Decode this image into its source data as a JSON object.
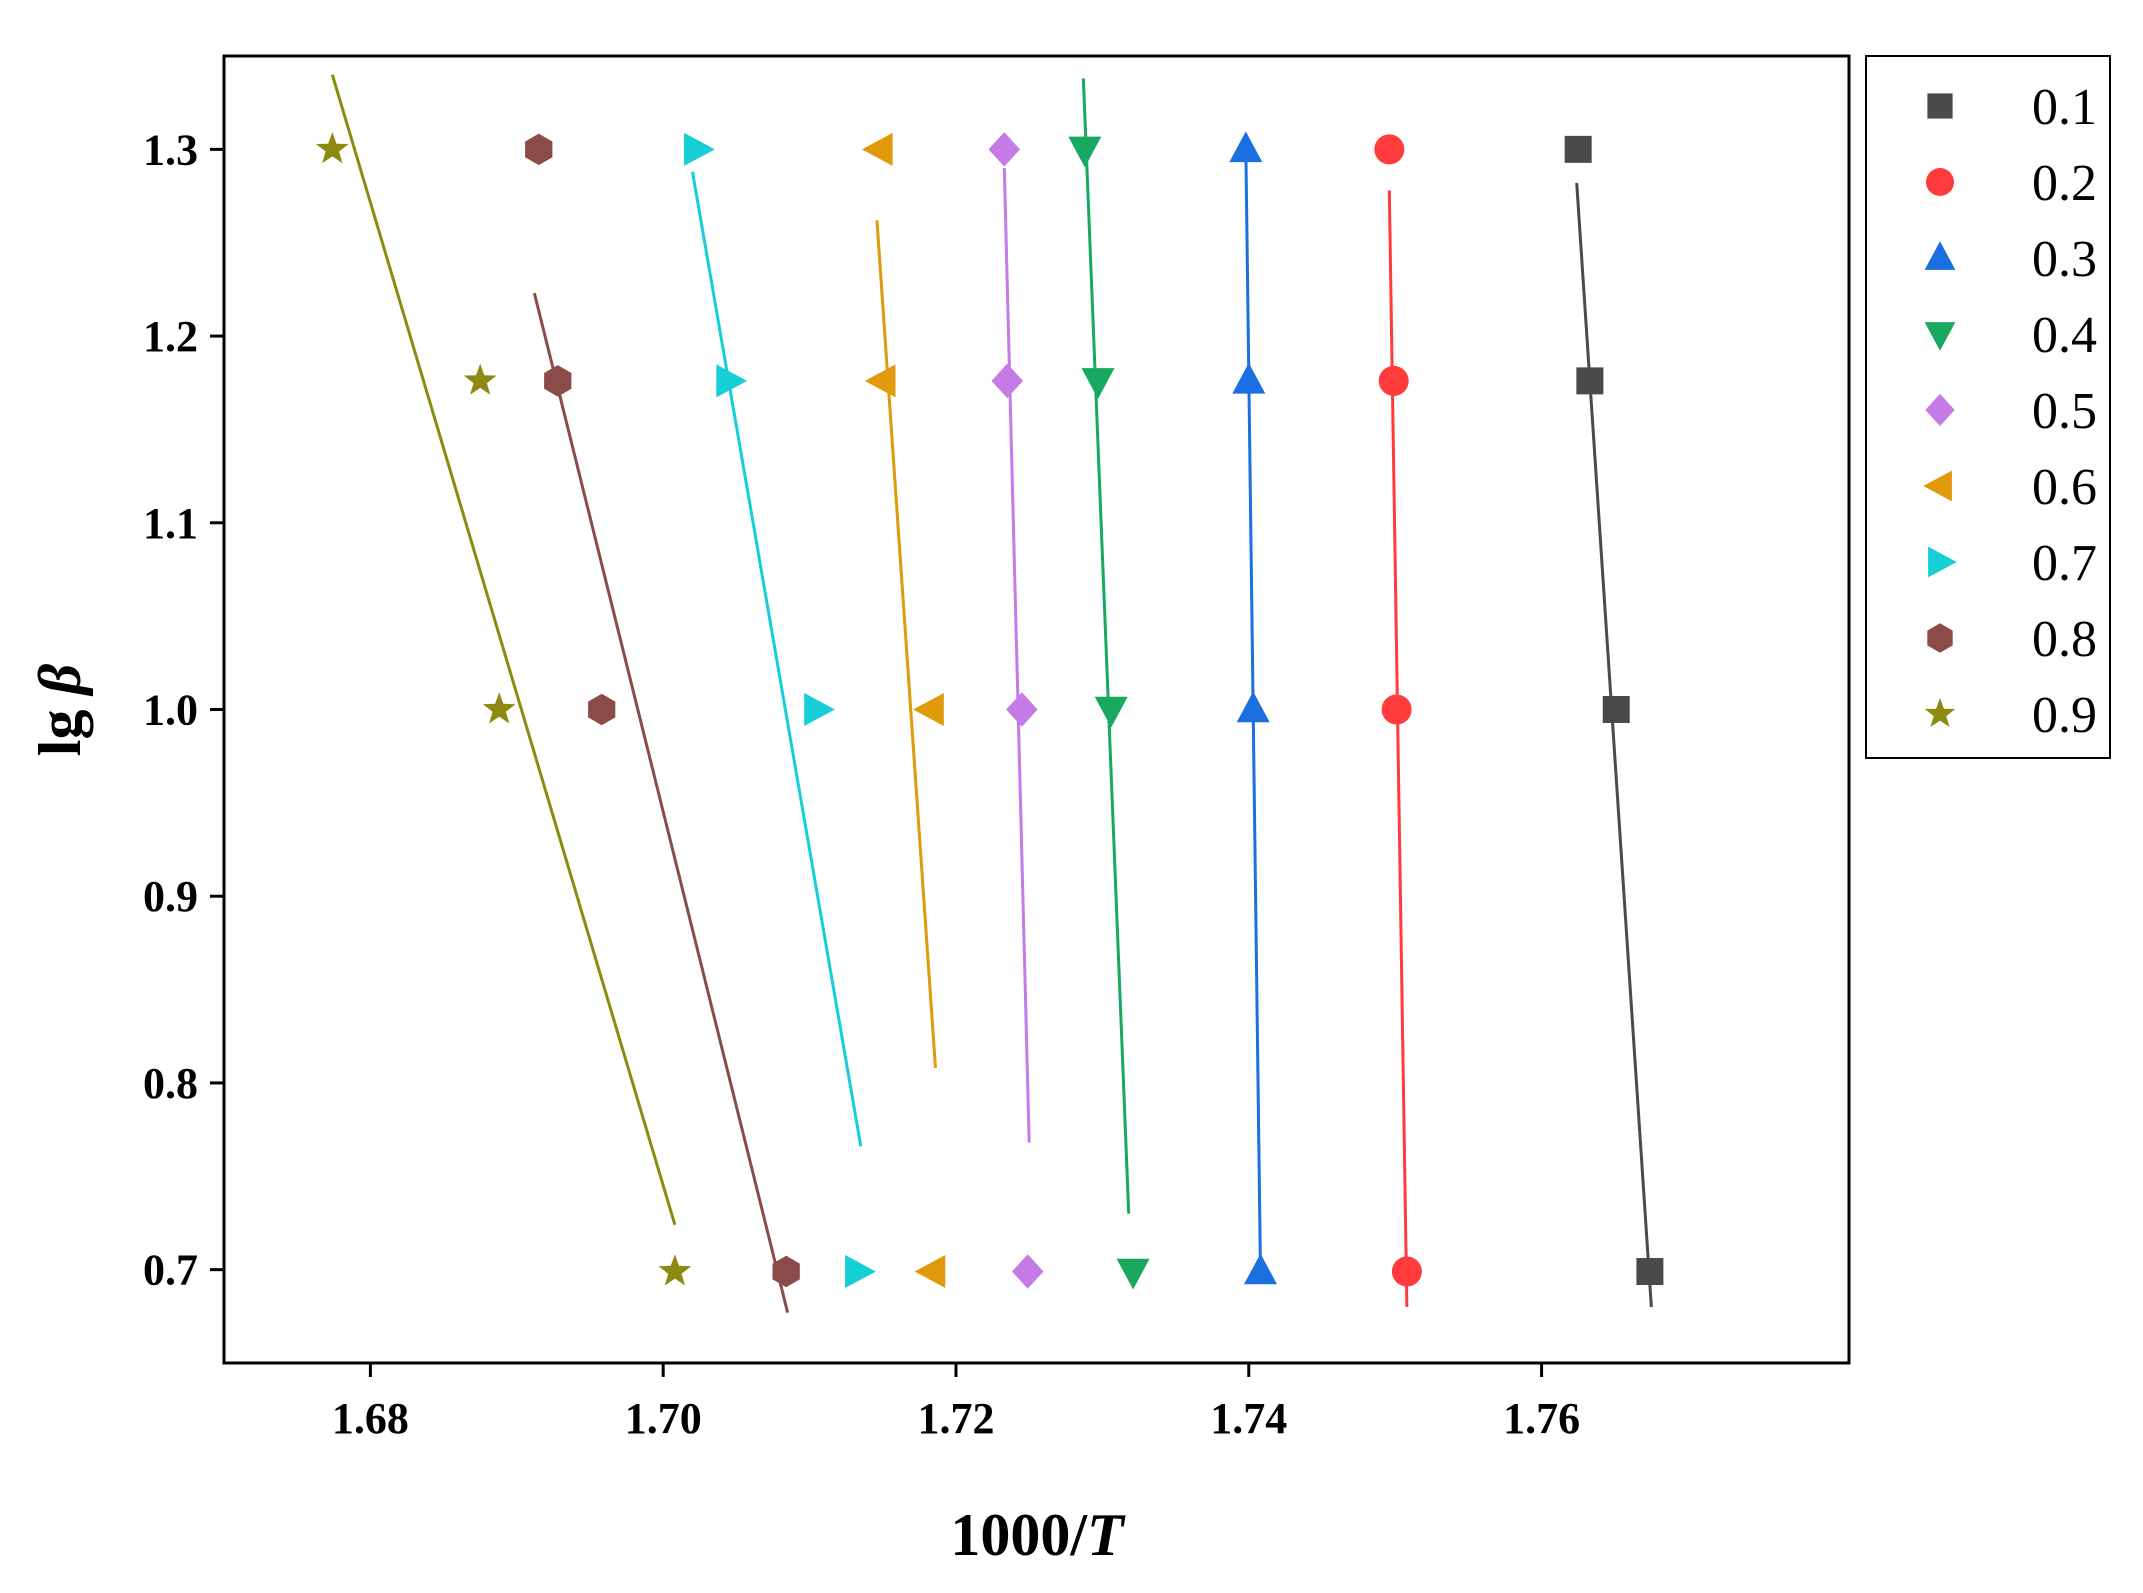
{
  "chart_data": {
    "type": "scatter",
    "title": "",
    "xlabel_main": "1000/",
    "xlabel_italic": "T",
    "ylabel_main": "lg ",
    "ylabel_italic": "β",
    "xlim": [
      1.67,
      1.781
    ],
    "ylim": [
      0.65,
      1.35
    ],
    "x_ticks": [
      1.68,
      1.7,
      1.72,
      1.74,
      1.76
    ],
    "x_tick_labels": [
      "1.68",
      "1.70",
      "1.72",
      "1.74",
      "1.76"
    ],
    "y_ticks": [
      0.7,
      0.8,
      0.9,
      1.0,
      1.1,
      1.2,
      1.3
    ],
    "y_tick_labels": [
      "0.7",
      "0.8",
      "0.9",
      "1.0",
      "1.1",
      "1.2",
      "1.3"
    ],
    "legend_position": "outside-top-right",
    "series": [
      {
        "name": "0.1",
        "color": "#4a4a4a",
        "marker": "square",
        "points": [
          [
            1.7625,
            1.3
          ],
          [
            1.7633,
            1.176
          ],
          [
            1.7651,
            1.0
          ],
          [
            1.7674,
            0.699
          ]
        ],
        "fit": [
          [
            1.7624,
            1.282
          ],
          [
            1.7675,
            0.68
          ]
        ]
      },
      {
        "name": "0.2",
        "color": "#ff3b3b",
        "marker": "circle",
        "points": [
          [
            1.7496,
            1.3
          ],
          [
            1.7499,
            1.176
          ],
          [
            1.7501,
            1.0
          ],
          [
            1.7508,
            0.699
          ]
        ],
        "fit": [
          [
            1.7496,
            1.278
          ],
          [
            1.7508,
            0.68
          ]
        ]
      },
      {
        "name": "0.3",
        "color": "#1b6fe0",
        "marker": "triangle-up",
        "points": [
          [
            1.7398,
            1.3
          ],
          [
            1.74,
            1.176
          ],
          [
            1.7403,
            1.0
          ],
          [
            1.7408,
            0.699
          ]
        ],
        "fit": [
          [
            1.7398,
            1.3
          ],
          [
            1.7408,
            0.699
          ]
        ]
      },
      {
        "name": "0.4",
        "color": "#18a860",
        "marker": "triangle-down",
        "points": [
          [
            1.7288,
            1.3
          ],
          [
            1.7297,
            1.176
          ],
          [
            1.7306,
            1.0
          ],
          [
            1.7321,
            0.699
          ]
        ],
        "fit": [
          [
            1.7287,
            1.338
          ],
          [
            1.7318,
            0.73
          ]
        ]
      },
      {
        "name": "0.5",
        "color": "#c57be6",
        "marker": "diamond",
        "points": [
          [
            1.7233,
            1.3
          ],
          [
            1.7235,
            1.176
          ],
          [
            1.7245,
            1.0
          ],
          [
            1.7249,
            0.699
          ]
        ],
        "fit": [
          [
            1.7233,
            1.29
          ],
          [
            1.725,
            0.768
          ]
        ]
      },
      {
        "name": "0.6",
        "color": "#e09a0c",
        "marker": "triangle-left",
        "points": [
          [
            1.7148,
            1.3
          ],
          [
            1.715,
            1.176
          ],
          [
            1.7183,
            1.0
          ],
          [
            1.7184,
            0.699
          ]
        ],
        "fit": [
          [
            1.7146,
            1.262
          ],
          [
            1.7186,
            0.808
          ]
        ]
      },
      {
        "name": "0.7",
        "color": "#16cfd6",
        "marker": "triangle-right",
        "points": [
          [
            1.7023,
            1.3
          ],
          [
            1.7045,
            1.176
          ],
          [
            1.7105,
            1.0
          ],
          [
            1.7133,
            0.699
          ]
        ],
        "fit": [
          [
            1.702,
            1.288
          ],
          [
            1.7135,
            0.766
          ]
        ]
      },
      {
        "name": "0.8",
        "color": "#8b4b49",
        "marker": "hexagon",
        "points": [
          [
            1.6915,
            1.3
          ],
          [
            1.6928,
            1.176
          ],
          [
            1.6958,
            1.0
          ],
          [
            1.7084,
            0.699
          ]
        ],
        "fit": [
          [
            1.6912,
            1.223
          ],
          [
            1.7085,
            0.677
          ]
        ]
      },
      {
        "name": "0.9",
        "color": "#8c8a10",
        "marker": "star",
        "points": [
          [
            1.6774,
            1.3
          ],
          [
            1.6875,
            1.176
          ],
          [
            1.6888,
            1.0
          ],
          [
            1.7008,
            0.699
          ]
        ],
        "fit": [
          [
            1.6774,
            1.34
          ],
          [
            1.7008,
            0.724
          ]
        ]
      }
    ]
  }
}
